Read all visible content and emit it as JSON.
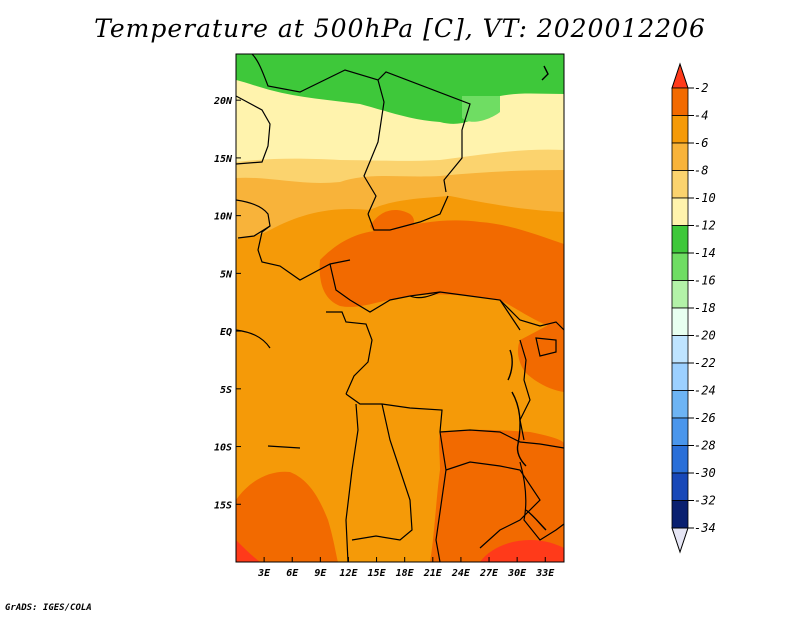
{
  "title": "Temperature at 500hPa [C], VT: 2020012206",
  "credit": "GrADS: IGES/COLA",
  "map": {
    "lon_range": [
      0,
      35
    ],
    "lat_range": [
      -20,
      24
    ],
    "lon_ticks": [
      {
        "value": 3,
        "label": "3E"
      },
      {
        "value": 6,
        "label": "6E"
      },
      {
        "value": 9,
        "label": "9E"
      },
      {
        "value": 12,
        "label": "12E"
      },
      {
        "value": 15,
        "label": "15E"
      },
      {
        "value": 18,
        "label": "18E"
      },
      {
        "value": 21,
        "label": "21E"
      },
      {
        "value": 24,
        "label": "24E"
      },
      {
        "value": 27,
        "label": "27E"
      },
      {
        "value": 30,
        "label": "30E"
      },
      {
        "value": 33,
        "label": "33E"
      }
    ],
    "lat_ticks": [
      {
        "value": 20,
        "label": "20N"
      },
      {
        "value": 15,
        "label": "15N"
      },
      {
        "value": 10,
        "label": "10N"
      },
      {
        "value": 5,
        "label": "5N"
      },
      {
        "value": 0,
        "label": "EQ"
      },
      {
        "value": -5,
        "label": "5S"
      },
      {
        "value": -10,
        "label": "10S"
      },
      {
        "value": -15,
        "label": "15S"
      }
    ]
  },
  "colorbar": {
    "labels": [
      "-2",
      "-4",
      "-6",
      "-8",
      "-10",
      "-12",
      "-14",
      "-16",
      "-18",
      "-20",
      "-22",
      "-24",
      "-26",
      "-28",
      "-30",
      "-32",
      "-34"
    ],
    "colors": [
      "#ff3a1a",
      "#f26a00",
      "#f59a08",
      "#f8b33a",
      "#fbd36e",
      "#fff3ad",
      "#3ec83a",
      "#6fdd63",
      "#b3f2a8",
      "#e8fff0",
      "#bfe4ff",
      "#9cd0ff",
      "#6db4f4",
      "#4a96ec",
      "#2a6fd8",
      "#1848b8",
      "#0a2070",
      "#101060",
      "#e6e6f5"
    ]
  },
  "field": {
    "type": "temperature-contours",
    "zones": [
      {
        "name": "green-north",
        "color": "#3ec83a"
      },
      {
        "name": "pale-yellow",
        "color": "#fff3ad"
      },
      {
        "name": "yellow",
        "color": "#fbd36e"
      },
      {
        "name": "light-orange",
        "color": "#f8b33a"
      },
      {
        "name": "orange",
        "color": "#f59a08"
      },
      {
        "name": "dark-orange",
        "color": "#f26a00"
      },
      {
        "name": "red",
        "color": "#ff3a1a"
      }
    ]
  }
}
